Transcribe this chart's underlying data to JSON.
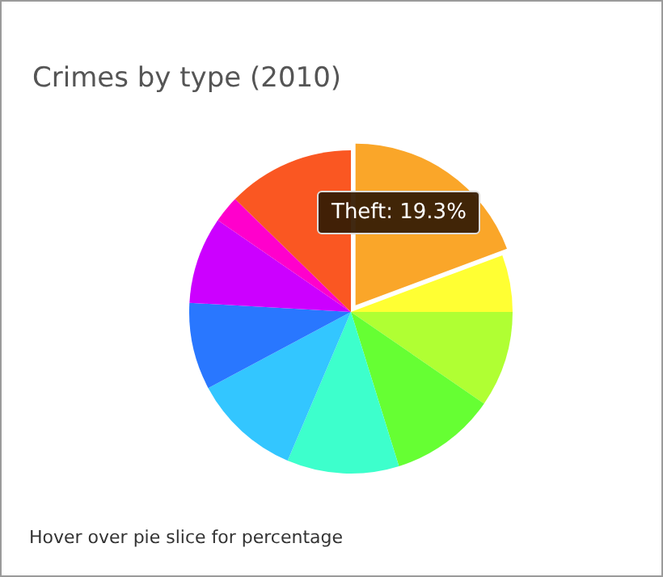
{
  "chart_data": {
    "type": "pie",
    "title": "Crimes by type (2010)",
    "categories": [
      "Theft",
      null,
      null,
      null,
      null,
      null,
      null,
      null,
      null,
      null
    ],
    "values": [
      19.3,
      5.7,
      9.6,
      10.6,
      11.2,
      10.8,
      8.7,
      8.7,
      2.7,
      12.7
    ],
    "value_labels": [
      "19.3%",
      null,
      null,
      null,
      null,
      null,
      null,
      null,
      null,
      null
    ],
    "colors": [
      "#faa629",
      "#ffff33",
      "#b0ff33",
      "#66ff33",
      "#3dffcc",
      "#33c6ff",
      "#2977ff",
      "#cc00ff",
      "#ff00cc",
      "#fa5722"
    ],
    "annotations": [
      "Hover over pie slice for percentage"
    ],
    "legend": false
  }
}
